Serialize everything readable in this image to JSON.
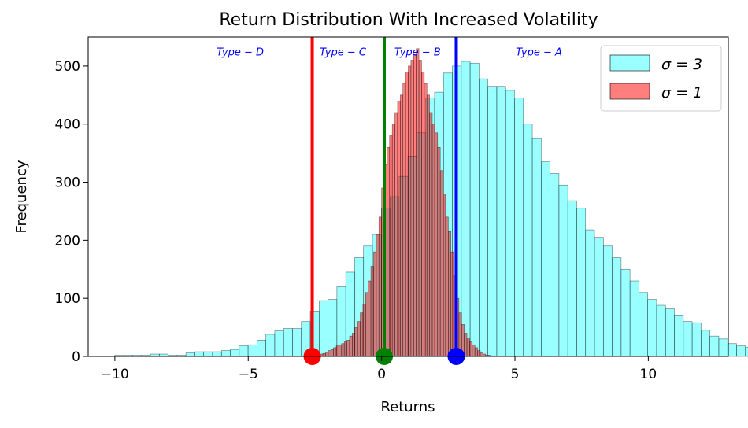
{
  "chart_data": {
    "type": "bar",
    "title": "Return Distribution With Increased Volatility",
    "xlabel": "Returns",
    "ylabel": "Frequency",
    "xlim": [
      -11,
      13
    ],
    "ylim": [
      0,
      550
    ],
    "xticks": [
      -10,
      -5,
      0,
      5,
      10
    ],
    "xtick_labels": [
      "−10",
      "−5",
      "0",
      "5",
      "10"
    ],
    "yticks": [
      0,
      100,
      200,
      300,
      400,
      500
    ],
    "grid": false,
    "legend_position": "top-right",
    "series": [
      {
        "name": "σ = 3",
        "color": "#00FFFF",
        "alpha": 0.4,
        "edge_color": "#000000",
        "bin_start": -10.0,
        "bin_width": 0.333,
        "values": [
          2,
          2,
          2,
          2,
          4,
          4,
          2,
          2,
          6,
          8,
          8,
          8,
          10,
          12,
          18,
          20,
          28,
          38,
          44,
          48,
          48,
          60,
          78,
          96,
          98,
          120,
          145,
          170,
          190,
          210,
          255,
          275,
          310,
          345,
          385,
          445,
          455,
          488,
          500,
          508,
          505,
          478,
          465,
          465,
          458,
          445,
          400,
          375,
          335,
          315,
          295,
          268,
          255,
          218,
          205,
          190,
          170,
          150,
          130,
          110,
          98,
          88,
          82,
          70,
          60,
          58,
          45,
          35,
          30,
          22,
          18,
          16,
          12,
          10,
          6,
          4,
          2,
          2,
          2,
          2,
          2,
          2,
          2
        ]
      },
      {
        "name": "σ = 1",
        "color": "#FF0000",
        "alpha": 0.5,
        "edge_color": "#000000",
        "bin_start": -2.8,
        "bin_width": 0.1,
        "values": [
          1,
          1,
          2,
          2,
          3,
          4,
          5,
          7,
          10,
          12,
          15,
          18,
          20,
          22,
          25,
          28,
          35,
          40,
          50,
          60,
          75,
          90,
          110,
          130,
          155,
          180,
          210,
          240,
          290,
          330,
          360,
          380,
          400,
          420,
          440,
          450,
          470,
          490,
          500,
          510,
          520,
          530,
          510,
          490,
          470,
          450,
          420,
          400,
          385,
          360,
          320,
          280,
          240,
          215,
          180,
          140,
          100,
          75,
          55,
          40,
          32,
          25,
          20,
          15,
          10,
          6,
          4,
          2,
          2,
          1,
          1
        ]
      }
    ],
    "reference_lines": [
      {
        "x": -2.6,
        "color": "#FF0000"
      },
      {
        "x": 0.1,
        "color": "#008000"
      },
      {
        "x": 2.8,
        "color": "#0000FF"
      }
    ],
    "annotations": [
      {
        "text": "Type − D",
        "x": -5.3,
        "y": 525
      },
      {
        "text": "Type − C",
        "x": -1.45,
        "y": 525
      },
      {
        "text": "Type − B",
        "x": 1.35,
        "y": 525
      },
      {
        "text": "Type − A",
        "x": 5.9,
        "y": 525
      }
    ]
  }
}
